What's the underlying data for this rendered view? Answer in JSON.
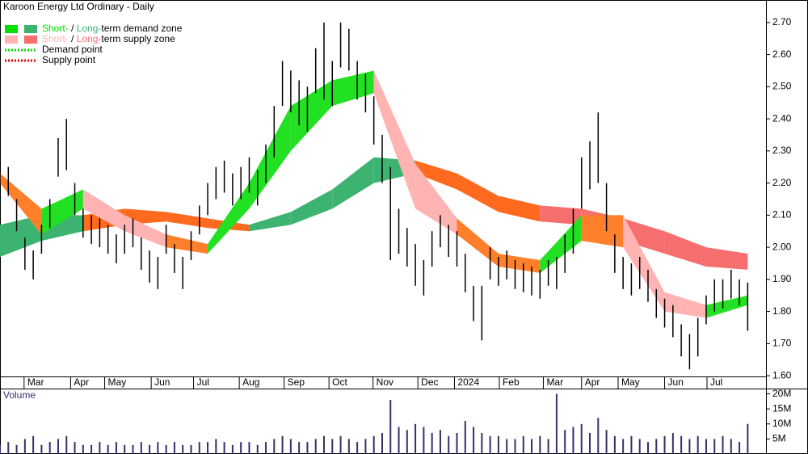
{
  "chart_data": [
    {
      "type": "price-zones",
      "title": "Karoon Energy Ltd Ordinary - Daily",
      "x": [
        0,
        1,
        2,
        3,
        4,
        5,
        6,
        7,
        8,
        9,
        10,
        11,
        12,
        13,
        14,
        15,
        16,
        17,
        18,
        19,
        20,
        21,
        22,
        23,
        24,
        25,
        26,
        27,
        28,
        29,
        30,
        31,
        32,
        33,
        34,
        35,
        36,
        37,
        38,
        39,
        40,
        41,
        42,
        43,
        44,
        45,
        46,
        47,
        48,
        49,
        50,
        51,
        52,
        53,
        54,
        55,
        56,
        57,
        58,
        59,
        60,
        61,
        62,
        63,
        64,
        65,
        66,
        67,
        68,
        69,
        70,
        71,
        72,
        73,
        74,
        75,
        76,
        77,
        78,
        79,
        80,
        81,
        82,
        83,
        84,
        85,
        86,
        87,
        88,
        89,
        90
      ],
      "high": [
        2.26,
        2.25,
        2.15,
        2.03,
        1.99,
        2.07,
        2.15,
        2.34,
        2.4,
        2.2,
        2.12,
        2.1,
        2.09,
        2.07,
        2.04,
        2.07,
        2.09,
        2.03,
        1.99,
        1.97,
        2.07,
        2.01,
        1.97,
        2.05,
        2.13,
        2.2,
        2.25,
        2.27,
        2.23,
        2.25,
        2.28,
        2.24,
        2.32,
        2.44,
        2.58,
        2.55,
        2.52,
        2.5,
        2.62,
        2.7,
        2.58,
        2.7,
        2.68,
        2.58,
        2.54,
        2.47,
        2.35,
        2.25,
        2.12,
        2.06,
        2.01,
        1.96,
        2.05,
        2.1,
        2.07,
        2.05,
        1.98,
        1.88,
        1.88,
        2.0,
        1.97,
        1.99,
        1.96,
        1.95,
        1.94,
        1.93,
        1.96,
        1.97,
        2.04,
        2.12,
        2.28,
        2.33,
        2.42,
        2.2,
        2.04,
        1.97,
        1.95,
        1.97,
        1.93,
        1.87,
        1.84,
        1.82,
        1.76,
        1.73,
        1.78,
        1.85,
        1.9,
        1.9,
        1.93,
        1.9,
        1.89
      ],
      "low": [
        2.18,
        2.16,
        2.05,
        1.93,
        1.9,
        1.98,
        2.06,
        2.22,
        2.24,
        2.1,
        2.03,
        2.01,
        2.0,
        1.98,
        1.95,
        1.98,
        2.0,
        1.93,
        1.89,
        1.87,
        1.98,
        1.92,
        1.87,
        1.96,
        2.04,
        2.1,
        2.15,
        2.17,
        2.13,
        2.15,
        2.17,
        2.13,
        2.2,
        2.28,
        2.44,
        2.42,
        2.38,
        2.36,
        2.48,
        2.46,
        2.44,
        2.56,
        2.55,
        2.46,
        2.42,
        2.32,
        2.2,
        1.96,
        1.98,
        1.94,
        1.88,
        1.85,
        1.94,
        2.0,
        1.97,
        1.94,
        1.86,
        1.77,
        1.71,
        1.9,
        1.88,
        1.9,
        1.87,
        1.86,
        1.85,
        1.84,
        1.88,
        1.87,
        1.92,
        1.98,
        2.12,
        2.18,
        2.2,
        2.05,
        1.92,
        1.87,
        1.85,
        1.87,
        1.83,
        1.78,
        1.75,
        1.72,
        1.66,
        1.62,
        1.66,
        1.76,
        1.8,
        1.81,
        1.84,
        1.82,
        1.74
      ],
      "bar_color": "#000000",
      "xlim": [
        0,
        92.2
      ],
      "xticks": [
        {
          "value": 2.9,
          "label": "Mar"
        },
        {
          "value": 8.5,
          "label": "Apr"
        },
        {
          "value": 12.6,
          "label": "May"
        },
        {
          "value": 18.2,
          "label": "Jun"
        },
        {
          "value": 23.3,
          "label": "Jul"
        },
        {
          "value": 28.8,
          "label": "Aug"
        },
        {
          "value": 34.2,
          "label": "Sep"
        },
        {
          "value": 39.6,
          "label": "Oct"
        },
        {
          "value": 44.9,
          "label": "Nov"
        },
        {
          "value": 50.3,
          "label": "Dec"
        },
        {
          "value": 54.7,
          "label": "2024"
        },
        {
          "value": 60.1,
          "label": "Feb"
        },
        {
          "value": 65.4,
          "label": "Mar"
        },
        {
          "value": 70.0,
          "label": "Apr"
        },
        {
          "value": 74.4,
          "label": "May"
        },
        {
          "value": 80.0,
          "label": "Jun"
        },
        {
          "value": 85.1,
          "label": "Jul"
        }
      ],
      "ylim": [
        1.56,
        2.77
      ],
      "yticks": [
        {
          "value": 1.6,
          "label": "1.60"
        },
        {
          "value": 1.7,
          "label": "1.70"
        },
        {
          "value": 1.8,
          "label": "1.80"
        },
        {
          "value": 1.9,
          "label": "1.90"
        },
        {
          "value": 2.0,
          "label": "2.00"
        },
        {
          "value": 2.1,
          "label": "2.10"
        },
        {
          "value": 2.2,
          "label": "2.20"
        },
        {
          "value": 2.3,
          "label": "2.30"
        },
        {
          "value": 2.4,
          "label": "2.40"
        },
        {
          "value": 2.5,
          "label": "2.50"
        },
        {
          "value": 2.6,
          "label": "2.60"
        },
        {
          "value": 2.7,
          "label": "2.70"
        }
      ],
      "zones": [
        {
          "x": [
            0,
            5,
            10,
            15,
            20,
            25,
            30,
            35,
            40,
            45,
            50,
            55,
            60,
            65,
            70,
            75,
            80,
            85,
            90
          ],
          "lower": [
            1.97,
            2.02,
            2.05,
            2.07,
            2.08,
            2.06,
            2.05,
            2.07,
            2.12,
            2.2,
            2.23,
            2.18,
            2.11,
            2.08,
            2.07,
            2.02,
            1.98,
            1.94,
            1.93
          ],
          "upper": [
            2.07,
            2.1,
            2.1,
            2.12,
            2.11,
            2.09,
            2.07,
            2.11,
            2.18,
            2.28,
            2.27,
            2.23,
            2.16,
            2.13,
            2.12,
            2.09,
            2.05,
            2.0,
            1.98
          ],
          "colors": [
            "#3cb371",
            "#3cb371",
            "#ff6a1e",
            "#ff6a1e",
            "#ff6a1e",
            "#ff6a1e",
            "#3cb371",
            "#3cb371",
            "#3cb371",
            "#3cb371",
            "#ff6a1e",
            "#ff6a1e",
            "#ff6a1e",
            "#f76e6e",
            "#f76e6e",
            "#f76e6e",
            "#f76e6e",
            "#f76e6e"
          ]
        },
        {
          "x": [
            0,
            5,
            10,
            15,
            20,
            25,
            30,
            35,
            40,
            45,
            50,
            55,
            60,
            65,
            70,
            75,
            80,
            85,
            90
          ],
          "lower": [
            2.2,
            2.04,
            2.12,
            2.05,
            2.0,
            1.98,
            2.12,
            2.3,
            2.44,
            2.48,
            2.12,
            2.04,
            1.94,
            1.92,
            2.02,
            2.0,
            1.8,
            1.78,
            1.82
          ],
          "upper": [
            2.23,
            2.12,
            2.18,
            2.1,
            2.04,
            2.01,
            2.2,
            2.44,
            2.52,
            2.55,
            2.26,
            2.09,
            1.98,
            1.96,
            2.1,
            2.1,
            1.86,
            1.82,
            1.85
          ],
          "colors": [
            "#ff7f2a",
            "#22e022",
            "#ffb3b3",
            "#ffb3b3",
            "#ff7f2a",
            "#22e022",
            "#22e022",
            "#22e022",
            "#22e022",
            "#ffb3b3",
            "#ffb3b3",
            "#ff7f2a",
            "#ff7f2a",
            "#22e022",
            "#ff7f2a",
            "#ffb3b3",
            "#ffb3b3",
            "#22e022"
          ]
        }
      ],
      "legend": [
        {
          "parts": [
            "Short-",
            " / ",
            "Long-",
            "term demand zone"
          ],
          "colors": [
            "#00e000",
            "#3cb371"
          ],
          "style": "zone"
        },
        {
          "parts": [
            "Short-",
            " / ",
            "Long-",
            "term supply zone"
          ],
          "colors": [
            "#ffb3b3",
            "#f76e6e"
          ],
          "style": "zone"
        },
        {
          "parts": [
            "Demand point"
          ],
          "colors": [
            "#00e000"
          ],
          "style": "dotted"
        },
        {
          "parts": [
            "Supply point"
          ],
          "colors": [
            "#e00000"
          ],
          "style": "dotted"
        }
      ]
    },
    {
      "type": "bar",
      "title": "Volume",
      "color": "#3d2b6b",
      "values": [
        3,
        4,
        3,
        5,
        6,
        3,
        4,
        5,
        6,
        4,
        3,
        3,
        4,
        3,
        4,
        3,
        3,
        4,
        3,
        4,
        3,
        4,
        3,
        3,
        4,
        4,
        5,
        4,
        3,
        4,
        4,
        3,
        4,
        5,
        6,
        5,
        4,
        4,
        5,
        6,
        5,
        6,
        5,
        4,
        5,
        6,
        7,
        18,
        9,
        8,
        10,
        9,
        7,
        8,
        6,
        7,
        11,
        9,
        7,
        6,
        6,
        5,
        5,
        6,
        5,
        6,
        5,
        20,
        8,
        9,
        10,
        7,
        12,
        8,
        6,
        5,
        6,
        5,
        4,
        5,
        6,
        7,
        6,
        5,
        6,
        5,
        5,
        6,
        5,
        4,
        10
      ],
      "ylim": [
        0,
        21.5
      ],
      "yticks": [
        {
          "value": 5,
          "label": "5M"
        },
        {
          "value": 10,
          "label": "10M"
        },
        {
          "value": 15,
          "label": "15M"
        },
        {
          "value": 20,
          "label": "20M"
        }
      ]
    }
  ]
}
